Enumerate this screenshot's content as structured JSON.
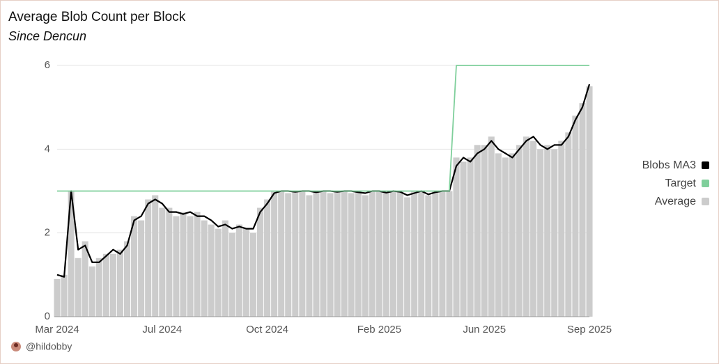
{
  "chart_data": {
    "type": "bar-line",
    "title": "Average Blob Count per Block",
    "subtitle": "Since Dencun",
    "categories": [
      "Mar 2024",
      null,
      null,
      null,
      null,
      null,
      null,
      null,
      null,
      null,
      null,
      null,
      null,
      null,
      null,
      "Jul 2024",
      null,
      null,
      null,
      null,
      null,
      null,
      null,
      null,
      null,
      null,
      null,
      null,
      null,
      null,
      "Oct 2024",
      null,
      null,
      null,
      null,
      null,
      null,
      null,
      null,
      null,
      null,
      null,
      null,
      null,
      null,
      null,
      "Feb 2025",
      null,
      null,
      null,
      null,
      null,
      null,
      null,
      null,
      null,
      null,
      null,
      null,
      null,
      null,
      "Jun 2025",
      null,
      null,
      null,
      null,
      null,
      null,
      null,
      null,
      null,
      null,
      null,
      null,
      null,
      null,
      "Sep 2025"
    ],
    "series": [
      {
        "name": "Blobs MA3",
        "color": "#000000",
        "kind": "line",
        "values": [
          1.0,
          0.95,
          3.0,
          1.6,
          1.7,
          1.3,
          1.3,
          1.45,
          1.6,
          1.5,
          1.7,
          2.3,
          2.4,
          2.7,
          2.8,
          2.7,
          2.5,
          2.5,
          2.45,
          2.5,
          2.4,
          2.4,
          2.3,
          2.15,
          2.2,
          2.1,
          2.15,
          2.1,
          2.1,
          2.5,
          2.7,
          2.95,
          3.0,
          3.0,
          2.98,
          3.0,
          3.0,
          2.97,
          3.0,
          3.0,
          2.98,
          3.0,
          3.0,
          2.97,
          2.95,
          3.0,
          3.0,
          2.96,
          3.0,
          2.98,
          2.9,
          2.95,
          3.0,
          2.92,
          2.97,
          3.0,
          3.0,
          3.6,
          3.8,
          3.7,
          3.9,
          4.0,
          4.2,
          4.0,
          3.9,
          3.8,
          4.0,
          4.2,
          4.3,
          4.1,
          4.0,
          4.1,
          4.1,
          4.3,
          4.7,
          5.0,
          5.55
        ]
      },
      {
        "name": "Target",
        "color": "#7fcf9b",
        "kind": "line",
        "values": [
          3,
          3,
          3,
          3,
          3,
          3,
          3,
          3,
          3,
          3,
          3,
          3,
          3,
          3,
          3,
          3,
          3,
          3,
          3,
          3,
          3,
          3,
          3,
          3,
          3,
          3,
          3,
          3,
          3,
          3,
          3,
          3,
          3,
          3,
          3,
          3,
          3,
          3,
          3,
          3,
          3,
          3,
          3,
          3,
          3,
          3,
          3,
          3,
          3,
          3,
          3,
          3,
          3,
          3,
          3,
          3,
          3,
          6,
          6,
          6,
          6,
          6,
          6,
          6,
          6,
          6,
          6,
          6,
          6,
          6,
          6,
          6,
          6,
          6,
          6,
          6,
          6
        ]
      },
      {
        "name": "Average",
        "color": "#cccccc",
        "kind": "bar",
        "values": [
          0.9,
          1.0,
          3.0,
          1.4,
          1.8,
          1.2,
          1.4,
          1.5,
          1.5,
          1.6,
          1.8,
          2.4,
          2.3,
          2.8,
          2.9,
          2.6,
          2.6,
          2.4,
          2.5,
          2.4,
          2.5,
          2.3,
          2.2,
          2.1,
          2.3,
          2.0,
          2.2,
          2.1,
          2.0,
          2.6,
          2.8,
          3.0,
          3.0,
          2.95,
          3.0,
          3.0,
          2.9,
          3.0,
          3.0,
          2.95,
          3.0,
          3.0,
          2.95,
          3.0,
          2.9,
          3.0,
          3.0,
          2.95,
          3.0,
          3.0,
          2.85,
          3.0,
          3.0,
          2.9,
          3.0,
          3.0,
          3.0,
          3.8,
          3.7,
          3.8,
          4.1,
          4.1,
          4.3,
          3.9,
          3.8,
          3.9,
          4.1,
          4.3,
          4.2,
          4.0,
          4.1,
          4.0,
          4.2,
          4.4,
          4.8,
          5.1,
          5.5
        ]
      }
    ],
    "ylim": [
      0,
      6
    ],
    "yticks": [
      0,
      2,
      4,
      6
    ],
    "grid": true,
    "legend": "right"
  },
  "footer": {
    "handle": "@hildobby"
  }
}
